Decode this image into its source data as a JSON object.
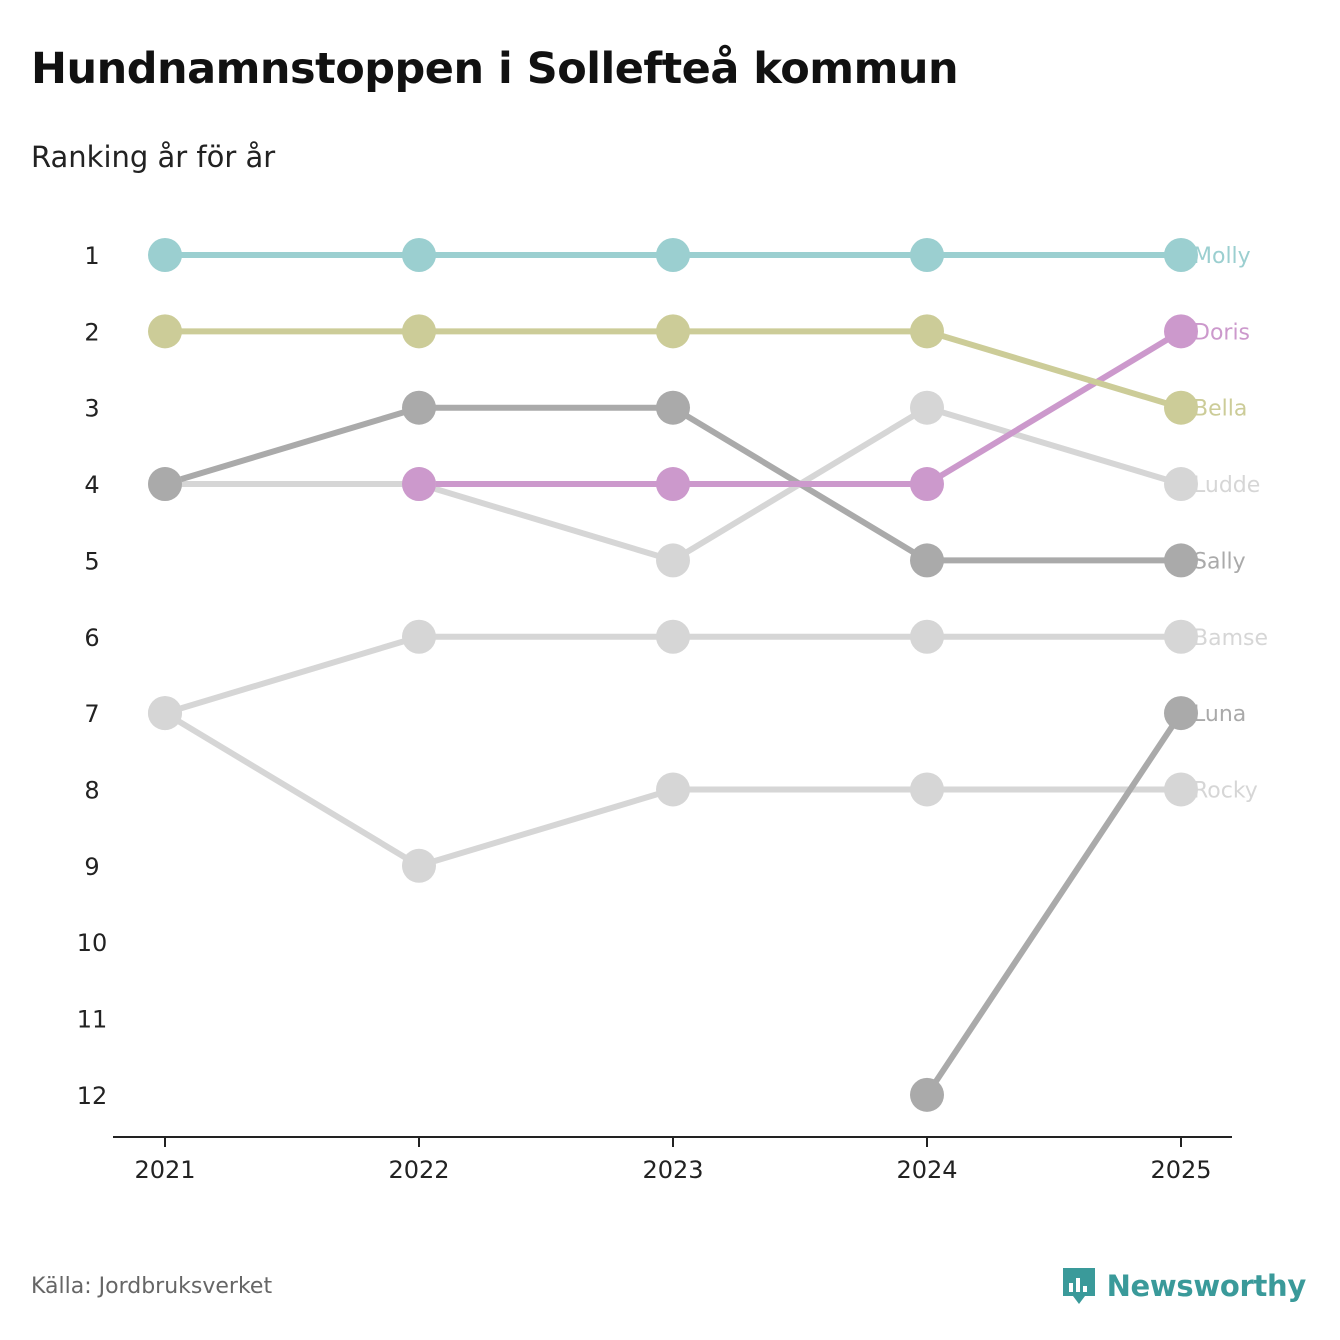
{
  "title": "Hundnamnstoppen i Sollefteå kommun",
  "subtitle": "Ranking år för år",
  "source": "Källa: Jordbruksverket",
  "brand": "Newsworthy",
  "colors": {
    "teal": "#9bcfd0",
    "olive": "#cccc98",
    "pink": "#cc99cc",
    "dark_grey": "#aaaaaa",
    "light_grey": "#d6d6d6",
    "axis": "#222222",
    "brand": "#3a9a9a"
  },
  "chart_data": {
    "type": "line",
    "title": "Hundnamnstoppen i Sollefteå kommun",
    "subtitle": "Ranking år för år",
    "xlabel": "",
    "ylabel": "",
    "x": [
      "2021",
      "2022",
      "2023",
      "2024",
      "2025"
    ],
    "yticks": [
      1,
      2,
      3,
      4,
      5,
      6,
      7,
      8,
      9,
      10,
      11,
      12
    ],
    "ylim": [
      12,
      1
    ],
    "series": [
      {
        "name": "Rocky",
        "color": "#d6d6d6",
        "values": [
          7,
          9,
          8,
          8,
          8
        ]
      },
      {
        "name": "Bamse",
        "color": "#d6d6d6",
        "values": [
          7,
          6,
          6,
          6,
          6
        ]
      },
      {
        "name": "Ludde",
        "color": "#d6d6d6",
        "values": [
          4,
          4,
          5,
          3,
          4
        ]
      },
      {
        "name": "Luna",
        "color": "#aaaaaa",
        "values": [
          null,
          null,
          null,
          12,
          7
        ]
      },
      {
        "name": "Sally",
        "color": "#aaaaaa",
        "values": [
          4,
          3,
          3,
          5,
          5
        ]
      },
      {
        "name": "Doris",
        "color": "#cc99cc",
        "values": [
          null,
          4,
          4,
          4,
          2
        ]
      },
      {
        "name": "Bella",
        "color": "#cccc98",
        "values": [
          2,
          2,
          2,
          2,
          3
        ]
      },
      {
        "name": "Molly",
        "color": "#9bcfd0",
        "values": [
          1,
          1,
          1,
          1,
          1
        ]
      }
    ]
  }
}
